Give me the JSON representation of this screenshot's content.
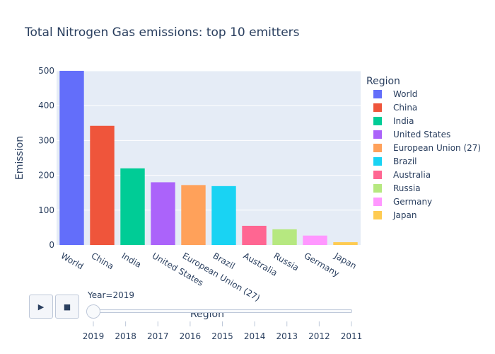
{
  "chart_data": {
    "type": "bar",
    "title": "Total Nitrogen Gas emissions: top 10 emitters",
    "xlabel": "Region",
    "ylabel": "Emission",
    "ylim": [
      0,
      500
    ],
    "yticks": [
      0,
      100,
      200,
      300,
      400,
      500
    ],
    "grid": true,
    "legend": {
      "title": "Region",
      "placement": "right"
    },
    "categories": [
      "World",
      "China",
      "India",
      "United States",
      "European Union (27)",
      "Brazil",
      "Australia",
      "Russia",
      "Germany",
      "Japan"
    ],
    "values": [
      500,
      342,
      220,
      180,
      172,
      169,
      55,
      45,
      27,
      8
    ],
    "colors": [
      "#636efa",
      "#ef553b",
      "#00cc96",
      "#ab63fa",
      "#ffa15a",
      "#19d3f3",
      "#ff6692",
      "#b6e880",
      "#ff97ff",
      "#fecb52"
    ]
  },
  "animation": {
    "current_label": "Year=2019",
    "steps": [
      "2019",
      "2018",
      "2017",
      "2016",
      "2015",
      "2014",
      "2013",
      "2012",
      "2011"
    ],
    "play_icon": "play-icon",
    "pause_icon": "pause-icon"
  }
}
